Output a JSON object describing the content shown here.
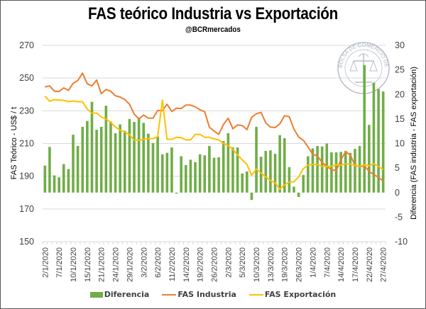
{
  "chart_data": {
    "type": "bar+line",
    "title": "FAS teórico Industria vs Exportación",
    "subtitle": "@BCRmercados",
    "ylabel_left": "FAS Teórico - US$ / t",
    "ylabel_right": "Diferencia (FAS industria - FAS exportación)",
    "ylim_left": [
      150,
      270
    ],
    "yticks_left": [
      150,
      170,
      190,
      210,
      230,
      250,
      270
    ],
    "ylim_right": [
      -10,
      30
    ],
    "yticks_right": [
      -10,
      -5,
      0,
      5,
      10,
      15,
      20,
      25,
      30
    ],
    "grid": true,
    "legend_position": "bottom",
    "x_tick_labels": [
      "2/1/2020",
      "7/1/2020",
      "10/1/2020",
      "15/1/2020",
      "21/1/2020",
      "24/1/2020",
      "29/1/2020",
      "3/2/2020",
      "6/2/2020",
      "11/2/2020",
      "14/2/2020",
      "19/2/2020",
      "26/2/2020",
      "2/3/2020",
      "5/3/2020",
      "10/3/2020",
      "13/3/2020",
      "19/3/2020",
      "26/3/2020",
      "1/4/2020",
      "7/4/2020",
      "14/4/2020",
      "17/4/2020",
      "22/4/2020",
      "27/4/2020"
    ],
    "x_tick_every": 3,
    "series": [
      {
        "name": "Diferencia",
        "type": "bar",
        "axis": "right",
        "color": "#70AD47",
        "values": [
          5.5,
          9.3,
          3.5,
          3.1,
          5.8,
          4.8,
          11.8,
          9.5,
          13.4,
          14.6,
          18.5,
          12.8,
          13.4,
          17.7,
          14.5,
          12.1,
          13.9,
          12.6,
          15.0,
          14.4,
          15.3,
          14.2,
          12.0,
          10.1,
          11.4,
          7.8,
          8.1,
          9.2,
          -0.2,
          7.4,
          5.6,
          6.7,
          6.2,
          7.8,
          7.6,
          9.5,
          7.1,
          7.2,
          10.5,
          12.1,
          9.2,
          9.2,
          3.9,
          4.3,
          -1.5,
          13.4,
          7.3,
          8.5,
          8.6,
          7.9,
          11.7,
          11.1,
          5.2,
          1.2,
          -0.9,
          3.6,
          7.4,
          9.0,
          9.5,
          9.4,
          10.0,
          8.2,
          8.2,
          8.3,
          8.5,
          8.1,
          8.9,
          9.5,
          26.0,
          13.8,
          22.4,
          21.1,
          20.6
        ],
        "values_note": "approximate"
      },
      {
        "name": "FAS Industria",
        "type": "line",
        "axis": "left",
        "color": "#ED7D31",
        "values": [
          244.6,
          245.2,
          242.0,
          241.8,
          244.0,
          242.5,
          246.8,
          248.5,
          253.0,
          246.5,
          245.2,
          248.8,
          240.4,
          243.0,
          242.0,
          239.2,
          238.4,
          236.8,
          234.0,
          228.0,
          225.0,
          227.4,
          225.5,
          225.5,
          230.2,
          230.0,
          234.0,
          229.6,
          231.6,
          231.4,
          233.5,
          233.5,
          232.4,
          230.6,
          229.4,
          220.0,
          217.6,
          215.6,
          221.6,
          225.5,
          219.0,
          221.4,
          221.0,
          218.5,
          226.0,
          228.2,
          229.0,
          222.6,
          220.0,
          219.8,
          222.0,
          227.0,
          226.4,
          218.8,
          214.0,
          212.0,
          208.0,
          203.4,
          202.4,
          198.4,
          196.0,
          194.0,
          193.4,
          200.0,
          205.0,
          203.0,
          196.6,
          195.8,
          196.4,
          193.0,
          191.0,
          189.4,
          187.0
        ]
      },
      {
        "name": "FAS Exportación",
        "type": "line",
        "axis": "left",
        "color": "#FFC000",
        "values": [
          239.0,
          235.8,
          236.8,
          236.6,
          236.4,
          235.6,
          236.0,
          235.5,
          235.6,
          231.0,
          228.6,
          228.6,
          226.2,
          225.0,
          223.0,
          220.0,
          218.2,
          217.0,
          215.4,
          212.0,
          212.0,
          212.6,
          213.0,
          213.0,
          214.2,
          236.5,
          212.6,
          212.6,
          213.8,
          213.6,
          212.2,
          212.2,
          215.6,
          215.6,
          213.8,
          213.8,
          212.8,
          212.2,
          210.0,
          208.8,
          206.4,
          203.0,
          200.0,
          197.2,
          190.6,
          194.4,
          192.0,
          189.6,
          187.4,
          186.0,
          182.0,
          184.8,
          186.4,
          186.6,
          189.6,
          194.6,
          196.8,
          197.2,
          197.2,
          196.0,
          196.0,
          196.0,
          197.0,
          196.8,
          197.6,
          197.4,
          196.6,
          196.0,
          197.0,
          196.4,
          197.6,
          196.0,
          194.0
        ]
      }
    ]
  },
  "legend": {
    "items": [
      "Diferencia",
      "FAS Industria",
      "FAS Exportación"
    ]
  },
  "watermark": {
    "text": "BOLSA DE COMERCIO DE ROSARIO"
  }
}
